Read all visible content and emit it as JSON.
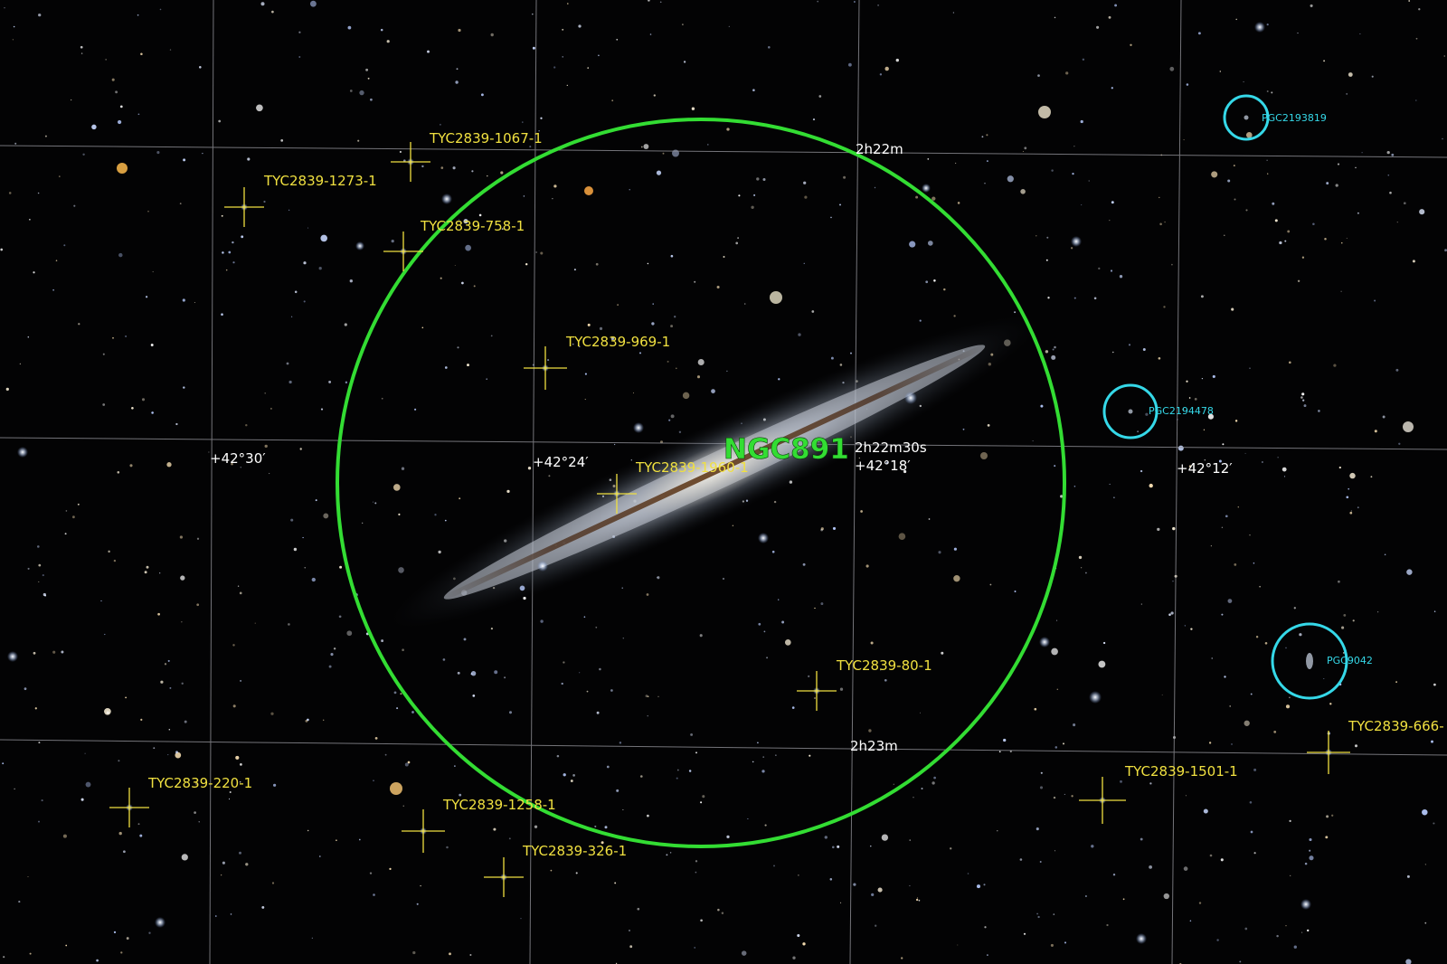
{
  "target": {
    "name": "NGC891",
    "color": "#33dd33"
  },
  "colors": {
    "background": "#030304",
    "grid": "#9a9aa0",
    "star_label": "#f0e040",
    "galaxy_label": "#35d8e8",
    "coord_label": "#ffffff"
  },
  "grid": {
    "ra_labels": [
      "2h22m",
      "2h22m30s",
      "2h23m"
    ],
    "dec_labels": [
      "+42°30′",
      "+42°24′",
      "+42°18′",
      "+42°12′"
    ]
  },
  "stars": [
    {
      "id": "TYC2839-1067-1"
    },
    {
      "id": "TYC2839-1273-1"
    },
    {
      "id": "TYC2839-758-1"
    },
    {
      "id": "TYC2839-969-1"
    },
    {
      "id": "TYC2839-1960-1"
    },
    {
      "id": "TYC2839-80-1"
    },
    {
      "id": "TYC2839-220-1"
    },
    {
      "id": "TYC2839-1258-1"
    },
    {
      "id": "TYC2839-326-1"
    },
    {
      "id": "TYC2839-1501-1"
    },
    {
      "id": "TYC2839-666-"
    }
  ],
  "galaxies": [
    {
      "id": "PGC2193819"
    },
    {
      "id": "PGC2194478"
    },
    {
      "id": "PGC9042"
    }
  ]
}
